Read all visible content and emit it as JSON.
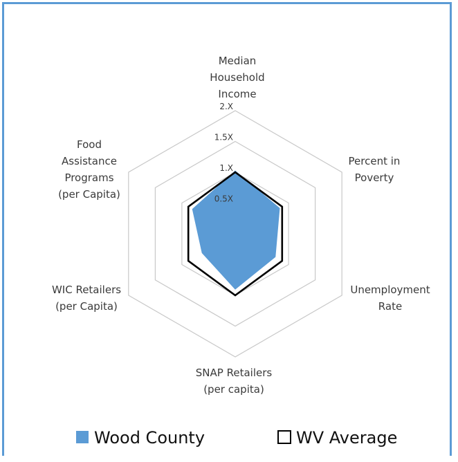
{
  "chart_data": {
    "type": "radar",
    "axes": [
      [
        "Median",
        "Household",
        "Income"
      ],
      [
        "Percent in",
        "Poverty"
      ],
      [
        "Unemployment",
        "Rate"
      ],
      [
        "SNAP Retailers",
        "(per capita)"
      ],
      [
        "WIC Retailers",
        "(per Capita)"
      ],
      [
        "Food",
        "Assistance",
        "Programs",
        "(per Capita)"
      ]
    ],
    "ticks": [
      0.5,
      1.0,
      1.5,
      2.0
    ],
    "tick_labels": [
      "0.5X",
      "1.X",
      "1.5X",
      "2.X"
    ],
    "range": [
      0,
      2
    ],
    "grid": true,
    "legend_position": "bottom",
    "series": [
      {
        "name": "Wood County",
        "values": [
          1.02,
          0.83,
          0.75,
          0.9,
          0.62,
          0.8
        ],
        "color": "#5b9bd5",
        "fill": true
      },
      {
        "name": "WV Average",
        "values": [
          1.0,
          0.88,
          0.88,
          1.0,
          0.88,
          0.88
        ],
        "color": "#000000",
        "fill": false
      }
    ]
  }
}
